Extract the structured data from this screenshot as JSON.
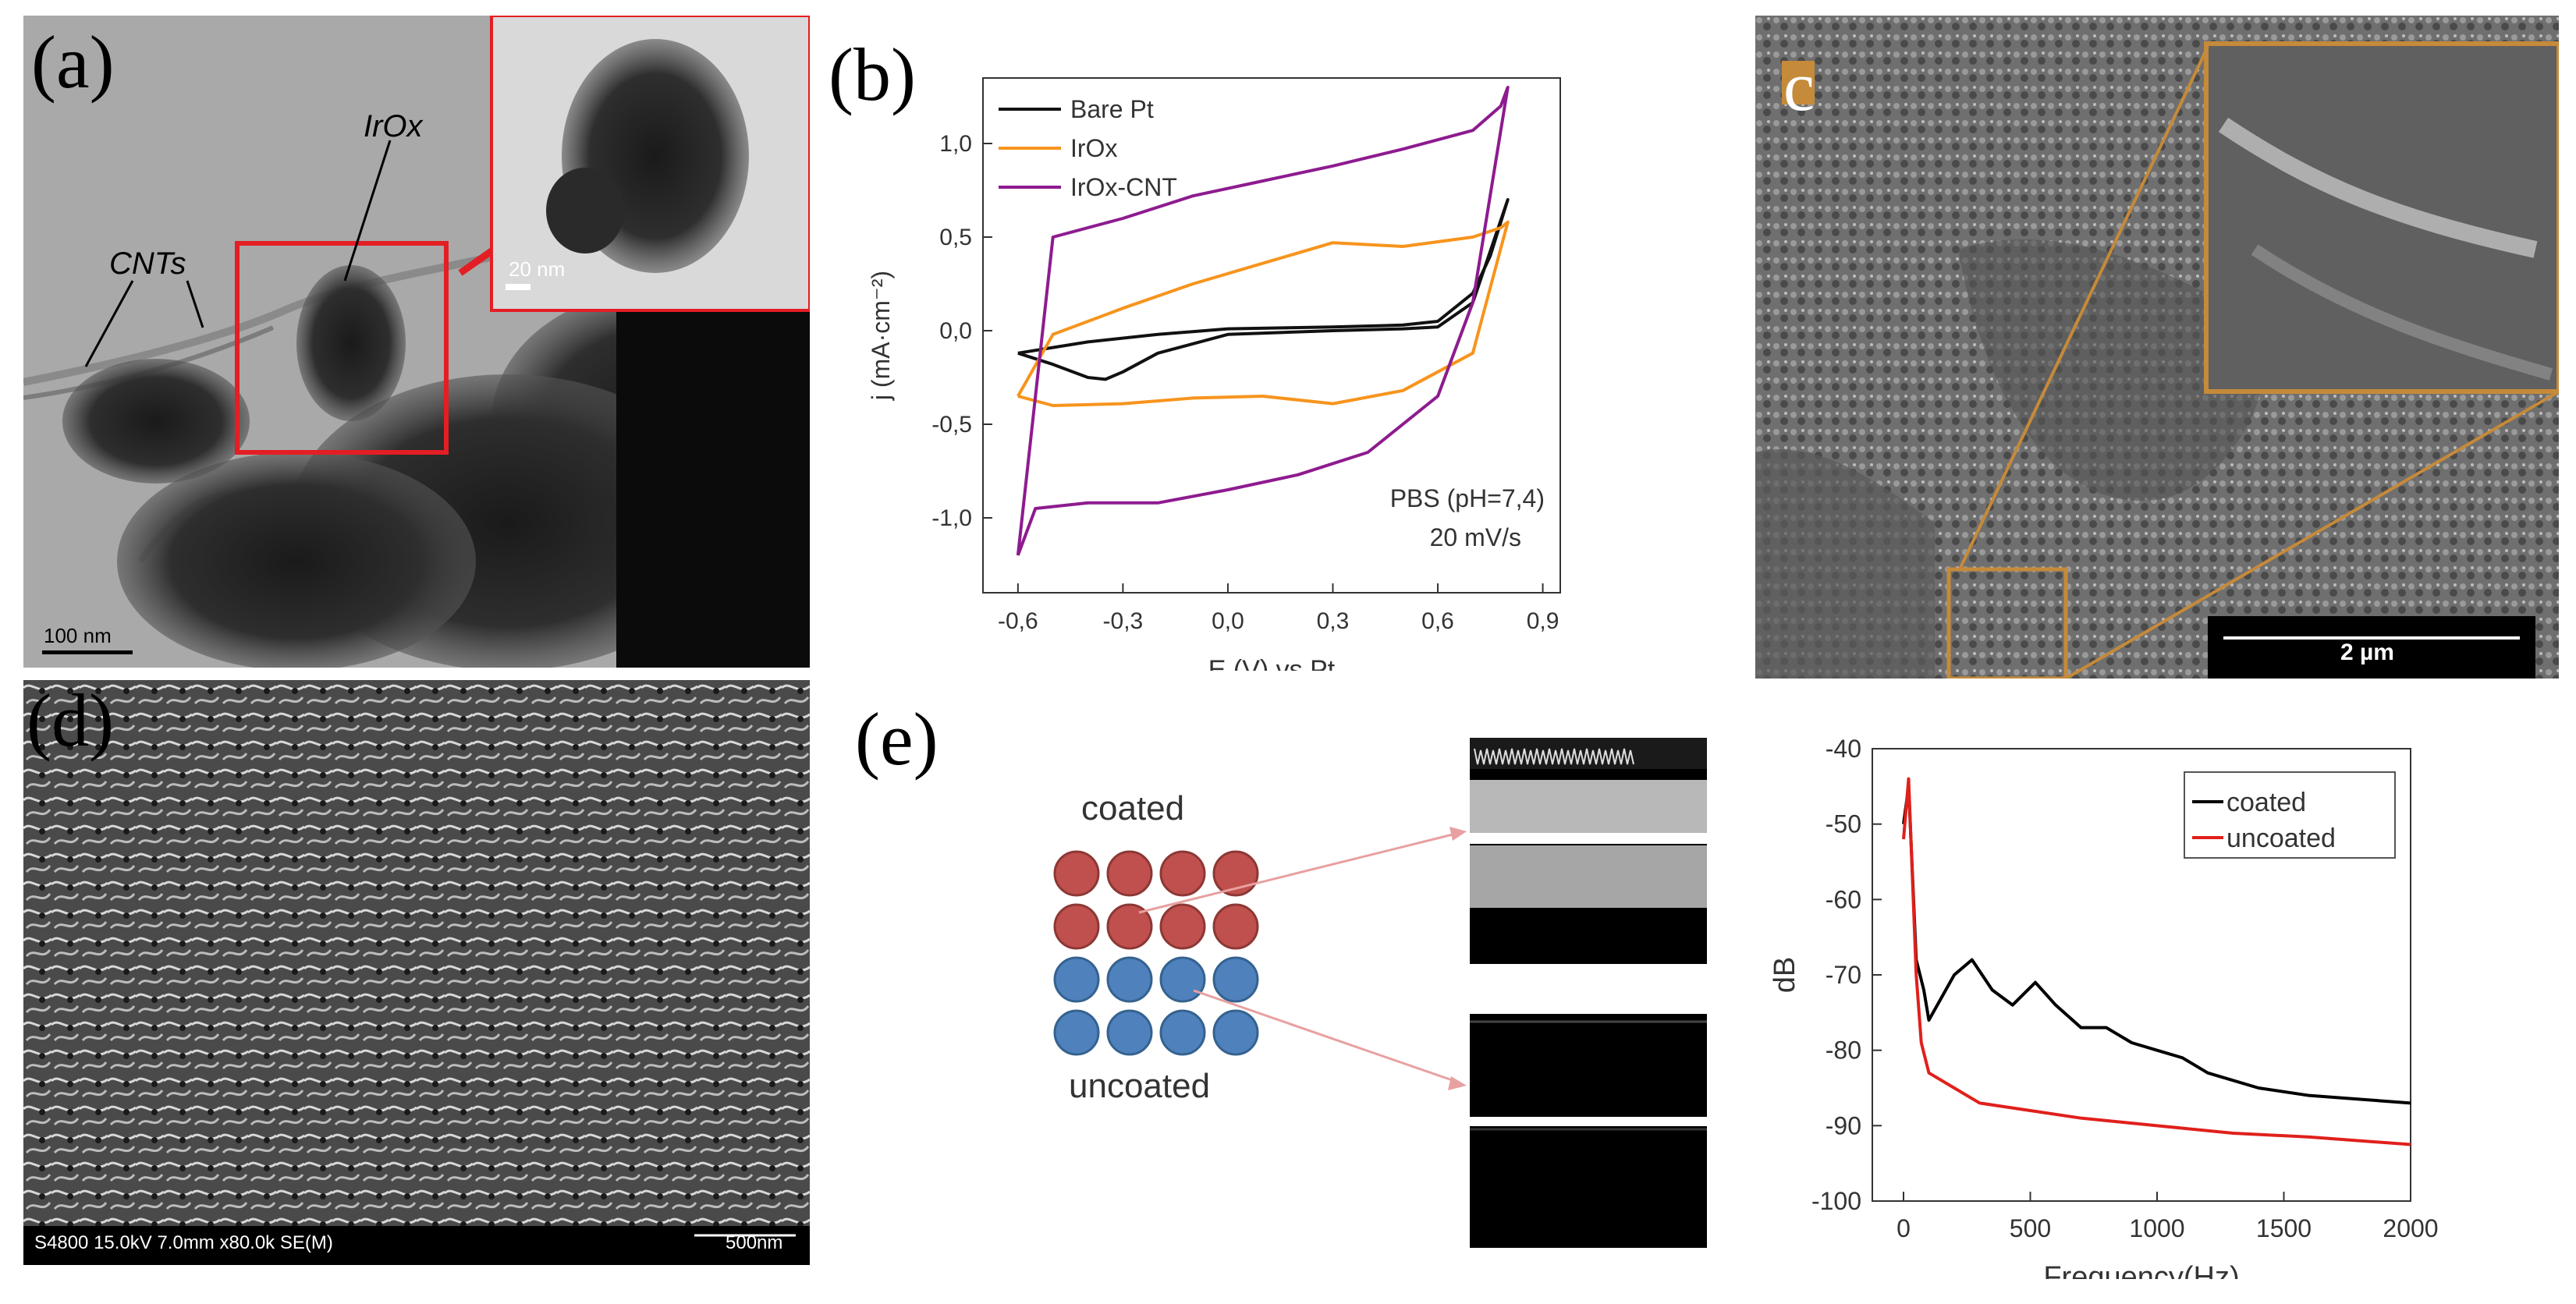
{
  "panels": {
    "a": {
      "label": "(a)",
      "annotations": {
        "irox": "IrOx",
        "cnts": "CNTs"
      },
      "scale_main": "100 nm",
      "scale_inset": "20 nm"
    },
    "b": {
      "label": "(b)",
      "xlabel": "E (V) vs Pt",
      "ylabel": "j (mA·cm⁻²)",
      "xticks": [
        "-0,6",
        "-0,3",
        "0,0",
        "0,3",
        "0,6",
        "0,9"
      ],
      "yticks": [
        "1,0",
        "0,5",
        "0,0",
        "-0,5",
        "-1,0"
      ],
      "condition_line1": "PBS (pH=7,4)",
      "condition_line2": "20 mV/s",
      "legend": [
        "Bare Pt",
        "IrOx",
        "IrOx-CNT"
      ],
      "colors": {
        "bare_pt": "#111111",
        "irox": "#f7941d",
        "irox_cnt": "#8e1b8f"
      }
    },
    "c": {
      "label": "c",
      "scale": "2 µm",
      "accent": "#c58a3a"
    },
    "d": {
      "label": "(d)",
      "sem_info": "S4800 15.0kV 7.0mm x80.0k SE(M)",
      "scale": "500nm"
    },
    "e": {
      "label": "(e)",
      "coated": "coated",
      "uncoated": "uncoated",
      "colors": {
        "coated_dot": "#c0504d",
        "uncoated_dot": "#4f81bd"
      }
    }
  },
  "chart_data": [
    {
      "type": "line",
      "panel": "b",
      "xlabel": "E (V) vs Pt",
      "ylabel": "j (mA·cm⁻²)",
      "xlim": [
        -0.7,
        0.95
      ],
      "ylim": [
        -1.4,
        1.35
      ],
      "annotations": [
        "PBS (pH=7,4)",
        "20 mV/s"
      ],
      "legend_position": "top-left",
      "series": [
        {
          "name": "Bare Pt",
          "color": "#111111",
          "x": [
            -0.6,
            -0.5,
            -0.4,
            -0.35,
            -0.3,
            -0.2,
            0.0,
            0.3,
            0.5,
            0.6,
            0.7,
            0.8,
            0.75,
            0.7,
            0.6,
            0.5,
            0.3,
            0.0,
            -0.2,
            -0.4,
            -0.6
          ],
          "y": [
            -0.12,
            -0.18,
            -0.25,
            -0.26,
            -0.22,
            -0.12,
            -0.02,
            0.0,
            0.01,
            0.02,
            0.15,
            0.7,
            0.4,
            0.2,
            0.05,
            0.03,
            0.02,
            0.01,
            -0.02,
            -0.06,
            -0.12
          ]
        },
        {
          "name": "IrOx",
          "color": "#f7941d",
          "x": [
            -0.6,
            -0.5,
            -0.3,
            -0.1,
            0.1,
            0.3,
            0.5,
            0.7,
            0.8,
            0.78,
            0.7,
            0.5,
            0.3,
            0.1,
            -0.1,
            -0.3,
            -0.5,
            -0.6
          ],
          "y": [
            -0.35,
            -0.4,
            -0.39,
            -0.36,
            -0.35,
            -0.39,
            -0.32,
            -0.12,
            0.58,
            0.55,
            0.5,
            0.45,
            0.47,
            0.36,
            0.25,
            0.12,
            -0.02,
            -0.35
          ]
        },
        {
          "name": "IrOx-CNT",
          "color": "#8e1b8f",
          "x": [
            -0.6,
            -0.55,
            -0.4,
            -0.2,
            0.0,
            0.2,
            0.4,
            0.6,
            0.7,
            0.8,
            0.78,
            0.7,
            0.5,
            0.3,
            0.1,
            -0.1,
            -0.3,
            -0.5,
            -0.6
          ],
          "y": [
            -1.2,
            -0.95,
            -0.92,
            -0.92,
            -0.85,
            -0.77,
            -0.65,
            -0.35,
            0.15,
            1.3,
            1.2,
            1.07,
            0.97,
            0.88,
            0.8,
            0.72,
            0.6,
            0.5,
            -1.2
          ]
        }
      ]
    },
    {
      "type": "line",
      "panel": "e",
      "xlabel": "Frequency(Hz)",
      "ylabel": "dB",
      "xlim": [
        0,
        2000
      ],
      "ylim": [
        -100,
        -40
      ],
      "xticks": [
        0,
        500,
        1000,
        1500,
        2000
      ],
      "yticks": [
        -40,
        -50,
        -60,
        -70,
        -80,
        -90,
        -100
      ],
      "legend_position": "top-right",
      "series": [
        {
          "name": "coated",
          "color": "#000000",
          "x": [
            0,
            20,
            50,
            80,
            100,
            150,
            200,
            270,
            350,
            430,
            520,
            600,
            700,
            800,
            900,
            1000,
            1100,
            1200,
            1400,
            1600,
            1800,
            2000
          ],
          "y": [
            -50,
            -45,
            -68,
            -72,
            -76,
            -73,
            -70,
            -68,
            -72,
            -74,
            -71,
            -74,
            -77,
            -77,
            -79,
            -80,
            -81,
            -83,
            -85,
            -86,
            -86.5,
            -87
          ]
        },
        {
          "name": "uncoated",
          "color": "#e0201b",
          "x": [
            0,
            20,
            50,
            70,
            100,
            200,
            300,
            500,
            700,
            1000,
            1300,
            1600,
            2000
          ],
          "y": [
            -52,
            -44,
            -70,
            -79,
            -83,
            -85,
            -87,
            -88,
            -89,
            -90,
            -91,
            -91.5,
            -92.5
          ]
        }
      ]
    }
  ]
}
